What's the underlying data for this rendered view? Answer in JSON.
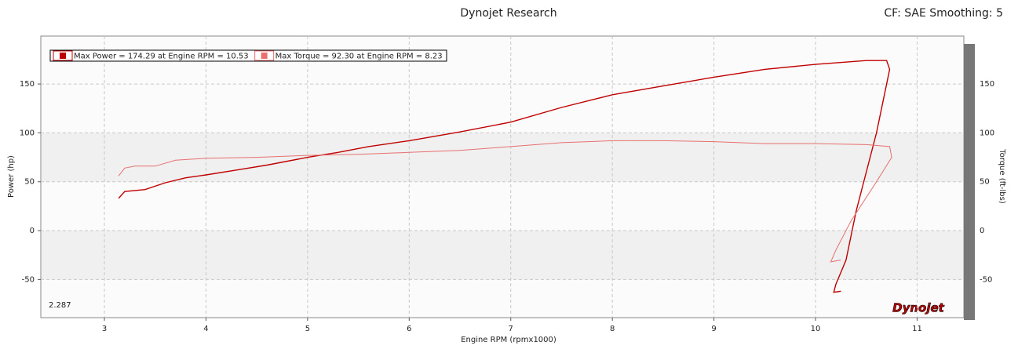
{
  "chart_data": {
    "type": "line",
    "title": "Dynojet Research",
    "subtitle": "CF: SAE Smoothing: 5",
    "xlabel": "Engine RPM (rpmx1000)",
    "ylabel": "Power (hp)",
    "y2label": "Torque (ft-lbs)",
    "annotations": [
      "2.287",
      "Dynojet"
    ],
    "xlim": [
      2.374,
      11.46
    ],
    "xticks": [
      3,
      4,
      5,
      6,
      7,
      8,
      9,
      10,
      11
    ],
    "ylim": [
      -89,
      199
    ],
    "yticks": [
      -50,
      0,
      50,
      100,
      150
    ],
    "y2lim": [
      -89,
      199
    ],
    "y2ticks": [
      -50,
      0,
      50,
      100,
      150
    ],
    "grid": true,
    "legend": "top-left",
    "series": [
      {
        "name": "Max Power = 174.29 at Engine RPM = 10.53",
        "color": "#c00000",
        "x": [
          3.14,
          3.2,
          3.4,
          3.6,
          3.8,
          4,
          4.3,
          4.6,
          5,
          5.3,
          5.6,
          6,
          6.5,
          7,
          7.5,
          8,
          8.5,
          9,
          9.5,
          10,
          10.5,
          10.7,
          10.73,
          10.6,
          10.4,
          10.3,
          10.2,
          10.18,
          10.25
        ],
        "values": [
          33,
          40,
          42,
          49,
          54,
          57,
          62,
          67,
          75,
          80,
          86,
          92,
          101,
          111,
          126,
          139,
          148,
          157,
          165,
          170,
          174,
          174,
          165,
          100,
          20,
          -30,
          -55,
          -63,
          -62
        ]
      },
      {
        "name": "Max Torque = 92.30 at Engine RPM = 8.23",
        "color": "#e87070",
        "axis": "y2",
        "x": [
          3.14,
          3.2,
          3.3,
          3.5,
          3.7,
          4,
          4.5,
          5,
          5.5,
          6,
          6.5,
          7,
          7.5,
          8,
          8.5,
          9,
          9.5,
          10,
          10.5,
          10.73,
          10.75,
          10.6,
          10.35,
          10.2,
          10.15,
          10.25
        ],
        "values": [
          56,
          64,
          66,
          66,
          72,
          74,
          75,
          77,
          78,
          80,
          82,
          86,
          90,
          92,
          92,
          91,
          89,
          89,
          88,
          86,
          75,
          50,
          10,
          -20,
          -32,
          -30
        ]
      }
    ]
  }
}
